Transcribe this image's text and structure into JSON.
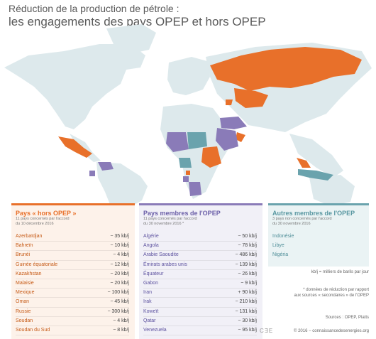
{
  "header": {
    "title_line1": "Réduction de la production de pétrole :",
    "title_line2": "les engagements des pays OPEP et hors OPEP"
  },
  "colors": {
    "hors_opep": "#e8702a",
    "opep": "#8a7bb8",
    "autres": "#6aa3ad",
    "land": "#dde9ec",
    "sea": "#ffffff"
  },
  "panels": {
    "hors_opep": {
      "title": "Pays « hors OPEP »",
      "sub1": "11 pays concernés par l'accord",
      "sub2": "du 10 décembre 2016",
      "rows": [
        {
          "name": "Azerbaïdjan",
          "value": "− 35 kb/j"
        },
        {
          "name": "Bahreïn",
          "value": "− 10 kb/j"
        },
        {
          "name": "Brunéi",
          "value": "− 4 kb/j"
        },
        {
          "name": "Guinée équatoriale",
          "value": "− 12 kb/j"
        },
        {
          "name": "Kazakhstan",
          "value": "− 20 kb/j"
        },
        {
          "name": "Malaisie",
          "value": "− 20 kb/j"
        },
        {
          "name": "Mexique",
          "value": "− 100 kb/j"
        },
        {
          "name": "Oman",
          "value": "− 45 kb/j"
        },
        {
          "name": "Russie",
          "value": "− 300 kb/j"
        },
        {
          "name": "Soudan",
          "value": "− 4 kb/j"
        },
        {
          "name": "Soudan du Sud",
          "value": "− 8 kb/j"
        }
      ]
    },
    "opep": {
      "title": "Pays membres de l'OPEP",
      "sub1": "11 pays concernés par l'accord",
      "sub2": "du 30 novembre 2016 *",
      "rows": [
        {
          "name": "Algérie",
          "value": "− 50 kb/j"
        },
        {
          "name": "Angola",
          "value": "− 78 kb/j"
        },
        {
          "name": "Arabie Saoudite",
          "value": "− 486 kb/j"
        },
        {
          "name": "Émirats arabes unis",
          "value": "− 139 kb/j"
        },
        {
          "name": "Équateur",
          "value": "− 26 kb/j"
        },
        {
          "name": "Gabon",
          "value": "− 9 kb/j"
        },
        {
          "name": "Iran",
          "value": "+ 90 kb/j"
        },
        {
          "name": "Irak",
          "value": "− 210 kb/j"
        },
        {
          "name": "Koweït",
          "value": "− 131 kb/j"
        },
        {
          "name": "Qatar",
          "value": "− 30 kb/j"
        },
        {
          "name": "Venezuela",
          "value": "− 95 kb/j"
        }
      ]
    },
    "autres": {
      "title": "Autres membres de l'OPEP",
      "sub1": "3 pays non concernés par l'accord",
      "sub2": "du 30 novembre 2016",
      "rows": [
        {
          "name": "Indonésie"
        },
        {
          "name": "Libye"
        },
        {
          "name": "Nigéria"
        }
      ]
    }
  },
  "notes": {
    "unit": "kb/j = milliers de barils par jour",
    "footnote_l1": "* données de réduction par rapport",
    "footnote_l2": "aux sources « secondaires » de l'OPEP",
    "sources": "Sources : OPEP, Platts",
    "credit": "© 2016 − connaissancedesenergies.org"
  }
}
